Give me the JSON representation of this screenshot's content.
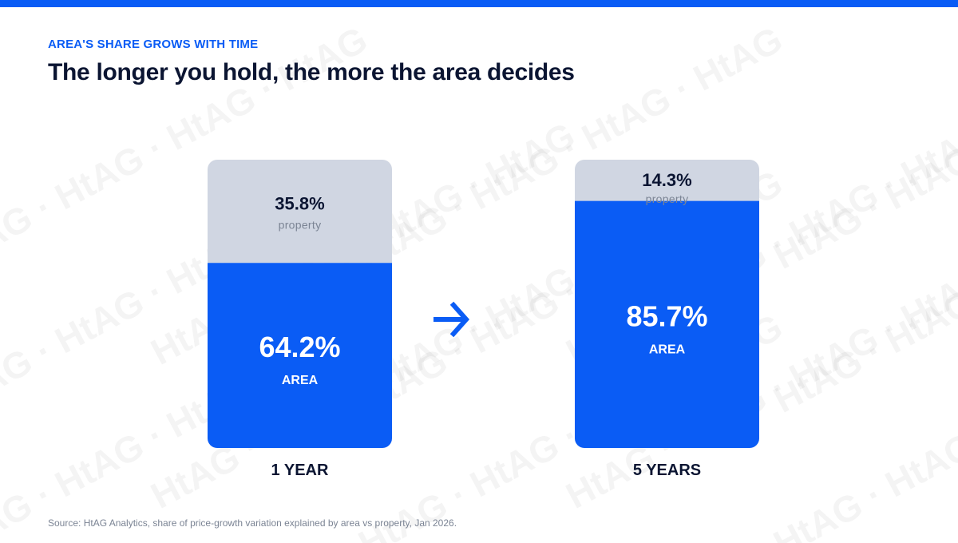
{
  "header": {
    "eyebrow": "AREA'S SHARE GROWS WITH TIME",
    "title": "The longer you hold, the more the area decides"
  },
  "watermark": {
    "text": "HtAG · HtAG · HtAG · HtAG"
  },
  "chart_data": {
    "type": "bar",
    "stacked": true,
    "categories": [
      "1 YEAR",
      "5 YEARS"
    ],
    "series": [
      {
        "name": "AREA",
        "values": [
          64.2,
          85.7
        ],
        "labels": [
          "64.2%",
          "85.7%"
        ]
      },
      {
        "name": "property",
        "values": [
          35.8,
          14.3
        ],
        "labels": [
          "35.8%",
          "14.3%"
        ]
      }
    ],
    "ylim": [
      0,
      100
    ],
    "grid": false,
    "legend": "none",
    "colors": {
      "area": "#0a5cf5",
      "property": "#d0d6e2",
      "area_text": "#ffffff",
      "property_text": "#0b1532",
      "property_sub": "#7b8494"
    },
    "connector_icon": "arrow-right-icon"
  },
  "footer": {
    "source": "Source: HtAG Analytics, share of price-growth variation explained by area vs property, Jan 2026."
  }
}
